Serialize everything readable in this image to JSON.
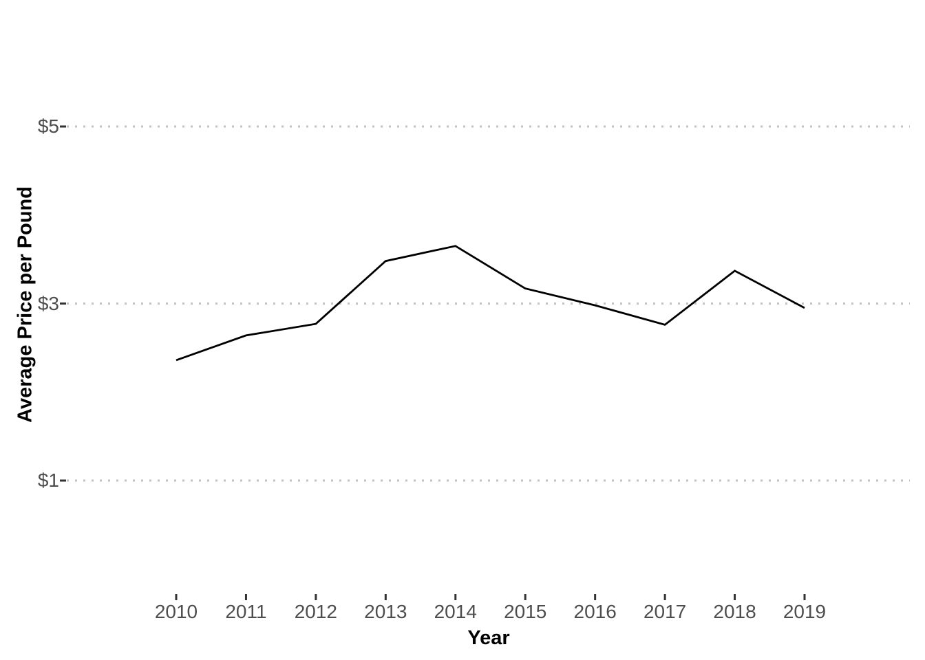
{
  "chart_data": {
    "type": "line",
    "title": "",
    "xlabel": "Year",
    "ylabel": "Average Price per Pound",
    "x": [
      2010,
      2011,
      2012,
      2013,
      2014,
      2015,
      2016,
      2017,
      2018,
      2019
    ],
    "series": [
      {
        "name": "average-price-per-pound",
        "values": [
          2.36,
          2.64,
          2.77,
          3.48,
          3.65,
          3.17,
          2.98,
          2.76,
          3.37,
          2.95
        ]
      }
    ],
    "xticks": {
      "values": [
        2010,
        2011,
        2012,
        2013,
        2014,
        2015,
        2016,
        2017,
        2018,
        2019
      ],
      "labels": [
        "2010",
        "2011",
        "2012",
        "2013",
        "2014",
        "2015",
        "2016",
        "2017",
        "2018",
        "2019"
      ]
    },
    "yticks": {
      "values": [
        5,
        3,
        1
      ],
      "labels": [
        "$5",
        "$3",
        "$1"
      ]
    },
    "ylim": [
      1,
      5
    ],
    "grid": "horizontal-dotted",
    "legend": "none",
    "colors": {
      "line": "#000000",
      "grid": "#c2c2c2",
      "tick_mark": "#333333",
      "tick_label": "#4d4d4d",
      "axis_title": "#000000",
      "background": "#ffffff"
    }
  }
}
